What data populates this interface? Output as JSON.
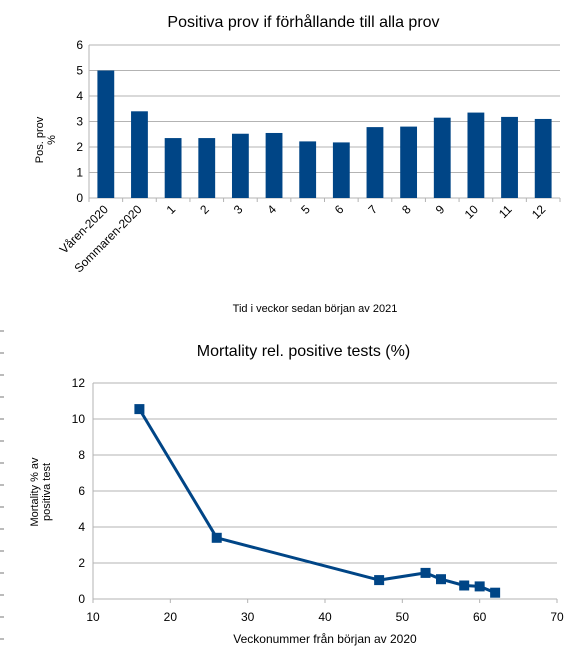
{
  "chart_data": [
    {
      "type": "bar",
      "title": "Positiva prov if förhållande till alla prov",
      "ylabel_line1": "Pos. prov",
      "ylabel_line2": "%",
      "xlabel": "Tid i veckor sedan början av 2021",
      "categories": [
        "Våren-2020",
        "Sommaren-2020",
        "1",
        "2",
        "3",
        "4",
        "5",
        "6",
        "7",
        "8",
        "9",
        "10",
        "11",
        "12"
      ],
      "values": [
        5.0,
        3.4,
        2.35,
        2.35,
        2.52,
        2.55,
        2.22,
        2.18,
        2.78,
        2.8,
        3.15,
        3.35,
        3.18,
        3.1
      ],
      "ylim": [
        0,
        6
      ],
      "yticks": [
        0,
        1,
        2,
        3,
        4,
        5,
        6
      ],
      "grid": true,
      "bar_color": "#004586"
    },
    {
      "type": "line",
      "title": "Mortality rel. positive tests (%)",
      "ylabel_line1": "Mortality % av",
      "ylabel_line2": "positiva test",
      "xlabel": "Veckonummer från början av 2020",
      "x": [
        16,
        26,
        47,
        53,
        55,
        58,
        60,
        62
      ],
      "y": [
        10.55,
        3.4,
        1.05,
        1.45,
        1.1,
        0.75,
        0.7,
        0.35
      ],
      "xlim": [
        10,
        70
      ],
      "ylim": [
        0,
        12
      ],
      "xticks": [
        10,
        20,
        30,
        40,
        50,
        60,
        70
      ],
      "yticks": [
        0,
        2,
        4,
        6,
        8,
        10,
        12
      ],
      "grid": true,
      "line_color": "#004586"
    }
  ]
}
